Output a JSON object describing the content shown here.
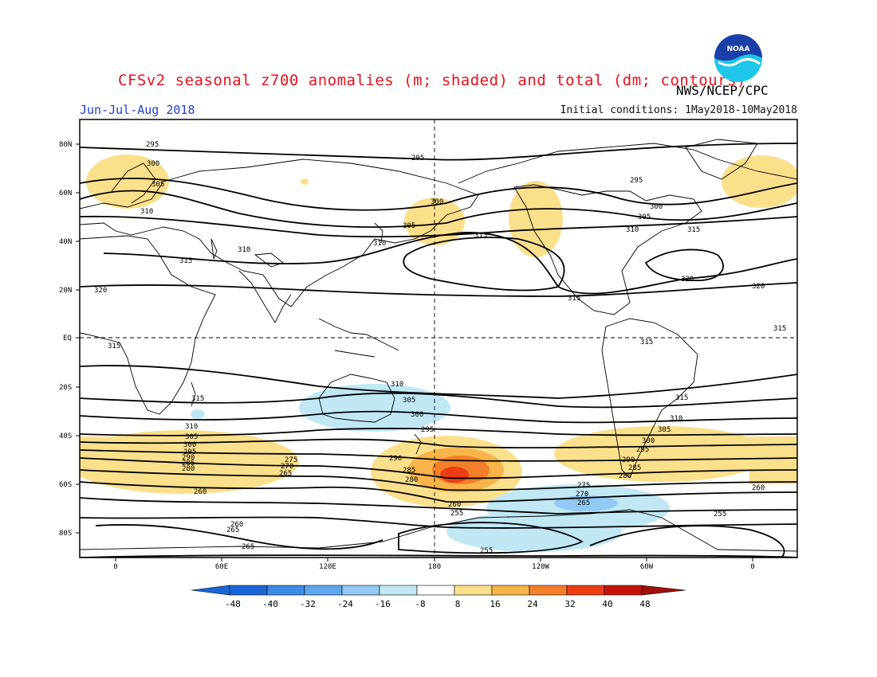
{
  "header": {
    "title": "CFSv2 seasonal z700 anomalies (m; shaded) and total (dm; contours)",
    "agency": "NWS/NCEP/CPC",
    "season": "Jun-Jul-Aug 2018",
    "initial_conditions": "Initial conditions: 1May2018-10May2018",
    "logo_text": "NOAA"
  },
  "colors": {
    "title": "#e8111b",
    "season": "#1c3fd6",
    "neg_48": "#1a66d6",
    "neg_40": "#3d8be6",
    "neg_32": "#5ea6ef",
    "neg_24": "#92c8f4",
    "neg_16": "#c0e8f4",
    "neg_8": "#ffffff",
    "pos_8": "#ffffff",
    "pos_16": "#fbe08c",
    "pos_24": "#f8b448",
    "pos_32": "#f47f2a",
    "pos_40": "#ec3e14",
    "pos_48": "#c6140c"
  },
  "axes": {
    "lat_labels": [
      "80N",
      "60N",
      "40N",
      "20N",
      "EQ",
      "20S",
      "40S",
      "60S",
      "80S"
    ],
    "lon_labels": [
      "0",
      "60E",
      "120E",
      "180",
      "120W",
      "60W",
      "0"
    ]
  },
  "colorbar": {
    "labels": [
      "-48",
      "-40",
      "-32",
      "-24",
      "-16",
      "-8",
      "8",
      "16",
      "24",
      "32",
      "40",
      "48"
    ]
  },
  "contours": [
    {
      "value": "295",
      "label": "295"
    },
    {
      "value": "300",
      "label": "300"
    },
    {
      "value": "305",
      "label": "305"
    },
    {
      "value": "310",
      "label": "310"
    },
    {
      "value": "315",
      "label": "315"
    },
    {
      "value": "320",
      "label": "320"
    },
    {
      "value": "290",
      "label": "290"
    },
    {
      "value": "285",
      "label": "285"
    },
    {
      "value": "280",
      "label": "280"
    },
    {
      "value": "275",
      "label": "275"
    },
    {
      "value": "270",
      "label": "270"
    },
    {
      "value": "265",
      "label": "265"
    },
    {
      "value": "260",
      "label": "260"
    },
    {
      "value": "255",
      "label": "255"
    }
  ]
}
